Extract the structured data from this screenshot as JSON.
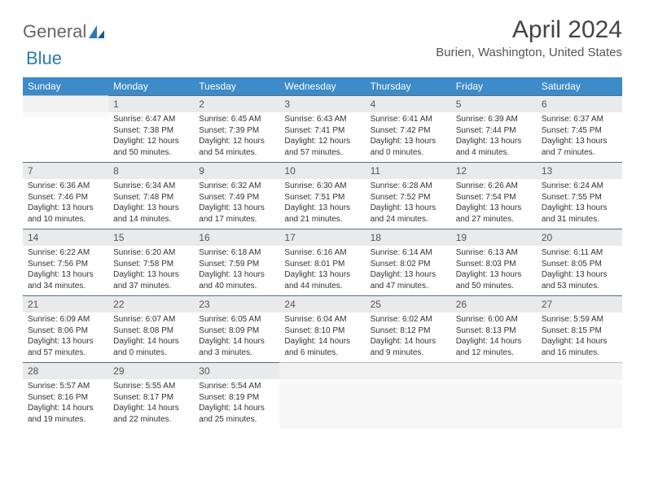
{
  "logo": {
    "text1": "General",
    "text2": "Blue",
    "accent": "#2a7ab8"
  },
  "title": "April 2024",
  "location": "Burien, Washington, United States",
  "colors": {
    "header_bg": "#3d8bc8",
    "header_fg": "#ffffff",
    "daynum_bg": "#e9eaeb",
    "daynum_border": "#5a6c7d",
    "text": "#333333"
  },
  "weekdays": [
    "Sunday",
    "Monday",
    "Tuesday",
    "Wednesday",
    "Thursday",
    "Friday",
    "Saturday"
  ],
  "weeks": [
    [
      null,
      {
        "n": "1",
        "sr": "6:47 AM",
        "ss": "7:38 PM",
        "dl": "12 hours and 50 minutes."
      },
      {
        "n": "2",
        "sr": "6:45 AM",
        "ss": "7:39 PM",
        "dl": "12 hours and 54 minutes."
      },
      {
        "n": "3",
        "sr": "6:43 AM",
        "ss": "7:41 PM",
        "dl": "12 hours and 57 minutes."
      },
      {
        "n": "4",
        "sr": "6:41 AM",
        "ss": "7:42 PM",
        "dl": "13 hours and 0 minutes."
      },
      {
        "n": "5",
        "sr": "6:39 AM",
        "ss": "7:44 PM",
        "dl": "13 hours and 4 minutes."
      },
      {
        "n": "6",
        "sr": "6:37 AM",
        "ss": "7:45 PM",
        "dl": "13 hours and 7 minutes."
      }
    ],
    [
      {
        "n": "7",
        "sr": "6:36 AM",
        "ss": "7:46 PM",
        "dl": "13 hours and 10 minutes."
      },
      {
        "n": "8",
        "sr": "6:34 AM",
        "ss": "7:48 PM",
        "dl": "13 hours and 14 minutes."
      },
      {
        "n": "9",
        "sr": "6:32 AM",
        "ss": "7:49 PM",
        "dl": "13 hours and 17 minutes."
      },
      {
        "n": "10",
        "sr": "6:30 AM",
        "ss": "7:51 PM",
        "dl": "13 hours and 21 minutes."
      },
      {
        "n": "11",
        "sr": "6:28 AM",
        "ss": "7:52 PM",
        "dl": "13 hours and 24 minutes."
      },
      {
        "n": "12",
        "sr": "6:26 AM",
        "ss": "7:54 PM",
        "dl": "13 hours and 27 minutes."
      },
      {
        "n": "13",
        "sr": "6:24 AM",
        "ss": "7:55 PM",
        "dl": "13 hours and 31 minutes."
      }
    ],
    [
      {
        "n": "14",
        "sr": "6:22 AM",
        "ss": "7:56 PM",
        "dl": "13 hours and 34 minutes."
      },
      {
        "n": "15",
        "sr": "6:20 AM",
        "ss": "7:58 PM",
        "dl": "13 hours and 37 minutes."
      },
      {
        "n": "16",
        "sr": "6:18 AM",
        "ss": "7:59 PM",
        "dl": "13 hours and 40 minutes."
      },
      {
        "n": "17",
        "sr": "6:16 AM",
        "ss": "8:01 PM",
        "dl": "13 hours and 44 minutes."
      },
      {
        "n": "18",
        "sr": "6:14 AM",
        "ss": "8:02 PM",
        "dl": "13 hours and 47 minutes."
      },
      {
        "n": "19",
        "sr": "6:13 AM",
        "ss": "8:03 PM",
        "dl": "13 hours and 50 minutes."
      },
      {
        "n": "20",
        "sr": "6:11 AM",
        "ss": "8:05 PM",
        "dl": "13 hours and 53 minutes."
      }
    ],
    [
      {
        "n": "21",
        "sr": "6:09 AM",
        "ss": "8:06 PM",
        "dl": "13 hours and 57 minutes."
      },
      {
        "n": "22",
        "sr": "6:07 AM",
        "ss": "8:08 PM",
        "dl": "14 hours and 0 minutes."
      },
      {
        "n": "23",
        "sr": "6:05 AM",
        "ss": "8:09 PM",
        "dl": "14 hours and 3 minutes."
      },
      {
        "n": "24",
        "sr": "6:04 AM",
        "ss": "8:10 PM",
        "dl": "14 hours and 6 minutes."
      },
      {
        "n": "25",
        "sr": "6:02 AM",
        "ss": "8:12 PM",
        "dl": "14 hours and 9 minutes."
      },
      {
        "n": "26",
        "sr": "6:00 AM",
        "ss": "8:13 PM",
        "dl": "14 hours and 12 minutes."
      },
      {
        "n": "27",
        "sr": "5:59 AM",
        "ss": "8:15 PM",
        "dl": "14 hours and 16 minutes."
      }
    ],
    [
      {
        "n": "28",
        "sr": "5:57 AM",
        "ss": "8:16 PM",
        "dl": "14 hours and 19 minutes."
      },
      {
        "n": "29",
        "sr": "5:55 AM",
        "ss": "8:17 PM",
        "dl": "14 hours and 22 minutes."
      },
      {
        "n": "30",
        "sr": "5:54 AM",
        "ss": "8:19 PM",
        "dl": "14 hours and 25 minutes."
      },
      null,
      null,
      null,
      null
    ]
  ],
  "labels": {
    "sunrise": "Sunrise:",
    "sunset": "Sunset:",
    "daylight": "Daylight:"
  }
}
